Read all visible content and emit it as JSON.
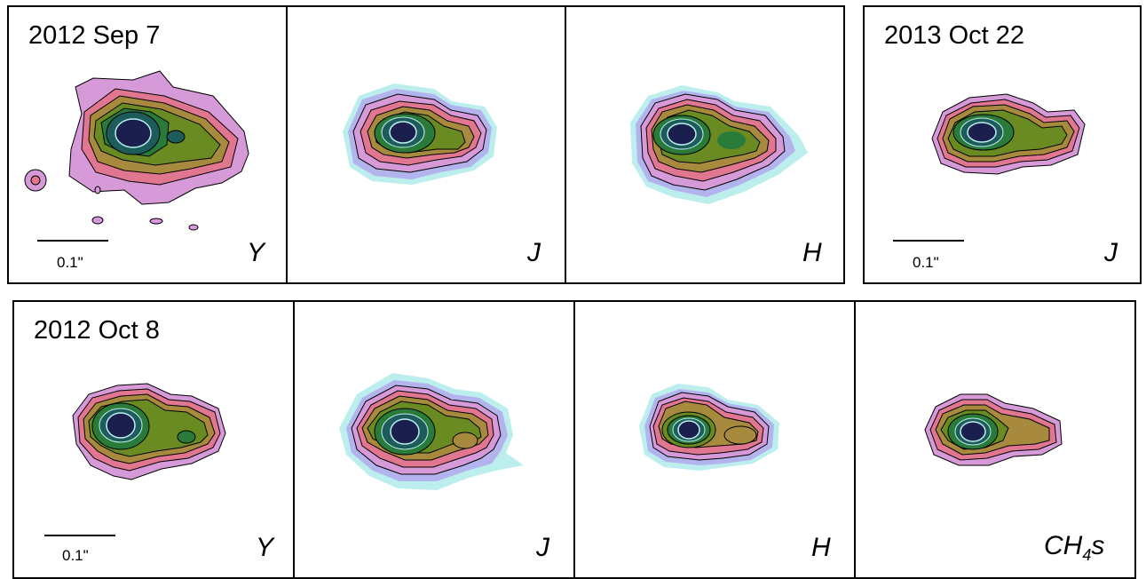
{
  "rows": [
    {
      "panels": [
        {
          "date": "2012 Sep 7",
          "band": "Y",
          "scale": "0.1\""
        },
        {
          "band": "J"
        },
        {
          "band": "H"
        }
      ]
    },
    {
      "panels": [
        {
          "date": "2013 Oct 22",
          "band": "J",
          "scale": "0.1\""
        }
      ]
    },
    {
      "panels": [
        {
          "date": "2012 Oct 8",
          "band": "Y",
          "scale": "0.1\""
        },
        {
          "band": "J"
        },
        {
          "band": "H"
        },
        {
          "band_main": "CH",
          "band_sub": "4",
          "band_tail": "s"
        }
      ]
    }
  ],
  "contour_colors": [
    "#bdeeee",
    "#b3b3ee",
    "#d79ad9",
    "#e0768f",
    "#a88a3e",
    "#6a8a22",
    "#2a7a3a",
    "#1e5c5c",
    "#1a1f4d"
  ]
}
